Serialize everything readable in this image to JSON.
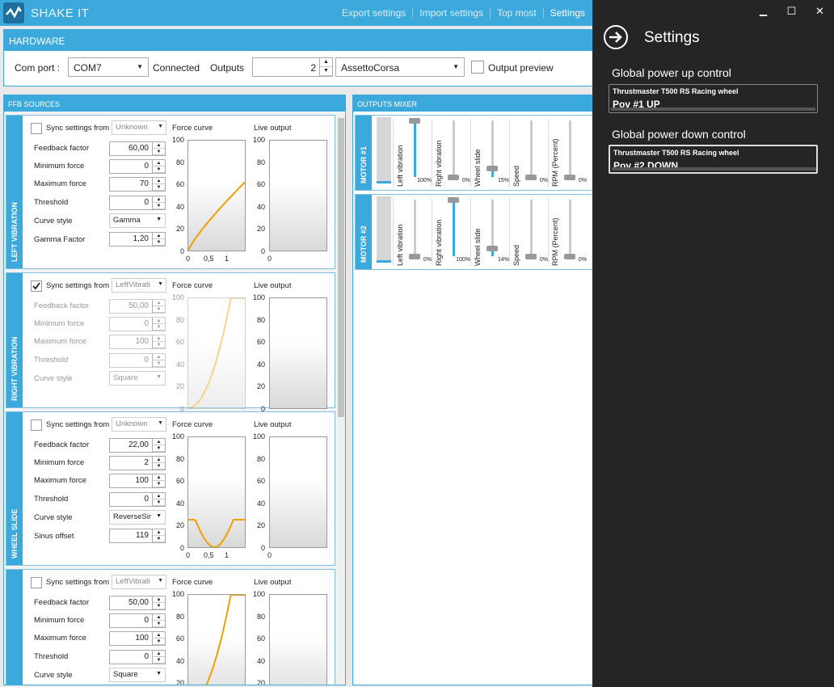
{
  "app": {
    "title": "SHAKE IT"
  },
  "menu": {
    "export": "Export settings",
    "import": "Import settings",
    "topmost": "Top most",
    "settings": "Settings"
  },
  "window": {
    "minimize": "▁",
    "maximize": "☐",
    "close": "✕"
  },
  "hardware": {
    "title": "HARDWARE",
    "comport_label": "Com port :",
    "comport_value": "COM7",
    "status": "Connected",
    "outputs_label": "Outputs",
    "outputs_value": "2",
    "game_value": "AssettoCorsa",
    "preview_label": "Output preview"
  },
  "ffb": {
    "title": "FFB SOURCES",
    "panels": [
      {
        "name": "LEFT VIBRATION",
        "sync_label": "Sync settings from",
        "sync_value": "Unknown",
        "sync_checked": false,
        "fields": [
          {
            "label": "Feedback factor",
            "value": "60,00"
          },
          {
            "label": "Minimum force",
            "value": "0"
          },
          {
            "label": "Maximum force",
            "value": "70"
          },
          {
            "label": "Threshold",
            "value": "0"
          }
        ],
        "curve_style_label": "Curve style",
        "curve_style_value": "Gamma",
        "extra_label": "Gamma Factor",
        "extra_value": "1,20",
        "force_curve_title": "Force curve",
        "live_output_title": "Live output"
      },
      {
        "name": "RIGHT VIBRATION",
        "sync_label": "Sync settings from",
        "sync_value": "LeftVibrati",
        "sync_checked": true,
        "fields": [
          {
            "label": "Feedback factor",
            "value": "50,00"
          },
          {
            "label": "Minimum force",
            "value": "0"
          },
          {
            "label": "Maximum force",
            "value": "100"
          },
          {
            "label": "Threshold",
            "value": "0"
          }
        ],
        "curve_style_label": "Curve style",
        "curve_style_value": "Square",
        "force_curve_title": "Force curve",
        "live_output_title": "Live output"
      },
      {
        "name": "WHEEL SLIDE",
        "sync_label": "Sync settings from",
        "sync_value": "Unknown",
        "sync_checked": false,
        "fields": [
          {
            "label": "Feedback factor",
            "value": "22,00"
          },
          {
            "label": "Minimum force",
            "value": "2"
          },
          {
            "label": "Maximum force",
            "value": "100"
          },
          {
            "label": "Threshold",
            "value": "0"
          }
        ],
        "curve_style_label": "Curve style",
        "curve_style_value": "ReverseSir",
        "extra_label": "Sinus offset",
        "extra_value": "119",
        "force_curve_title": "Force curve",
        "live_output_title": "Live output"
      },
      {
        "name": "",
        "sync_label": "Sync settings from",
        "sync_value": "LeftVibrati",
        "sync_checked": false,
        "fields": [
          {
            "label": "Feedback factor",
            "value": "50,00"
          },
          {
            "label": "Minimum force",
            "value": "0"
          },
          {
            "label": "Maximum force",
            "value": "100"
          },
          {
            "label": "Threshold",
            "value": "0"
          }
        ],
        "curve_style_label": "Curve style",
        "curve_style_value": "Square",
        "force_curve_title": "Force curve",
        "live_output_title": "Live output"
      }
    ],
    "yticks": [
      "100",
      "80",
      "60",
      "40",
      "20",
      "0"
    ],
    "xticks": [
      "0",
      "0,5",
      "1"
    ]
  },
  "mixer": {
    "title": "OUTPUTS MIXER",
    "motors": [
      {
        "name": "MOTOR #1",
        "channels": [
          {
            "label": "Left vibration",
            "value": 100,
            "pct": "100%"
          },
          {
            "label": "Right vibration",
            "value": 0,
            "pct": "0%"
          },
          {
            "label": "Wheel slide",
            "value": 15,
            "pct": "15%"
          },
          {
            "label": "Speed",
            "value": 0,
            "pct": "0%"
          },
          {
            "label": "RPM (Percent)",
            "value": 0,
            "pct": "0%"
          }
        ]
      },
      {
        "name": "MOTOR #2",
        "channels": [
          {
            "label": "Left vibration",
            "value": 0,
            "pct": "0%"
          },
          {
            "label": "Right vibration",
            "value": 100,
            "pct": "100%"
          },
          {
            "label": "Wheel slide",
            "value": 14,
            "pct": "14%"
          },
          {
            "label": "Speed",
            "value": 0,
            "pct": "0%"
          },
          {
            "label": "RPM (Percent)",
            "value": 0,
            "pct": "0%"
          }
        ]
      }
    ]
  },
  "settings": {
    "title": "Settings",
    "power_up_title": "Global power up control",
    "power_up_device": "Thrustmaster T500 RS Racing wheel",
    "power_up_key": "Pov #1 UP",
    "power_down_title": "Global power down control",
    "power_down_device": "Thrustmaster T500 RS Racing wheel",
    "power_down_key": "Pov #2 DOWN"
  },
  "colors": {
    "accent": "#3ca9dc",
    "curve": "#f0a000",
    "panel_dark": "#252526"
  }
}
